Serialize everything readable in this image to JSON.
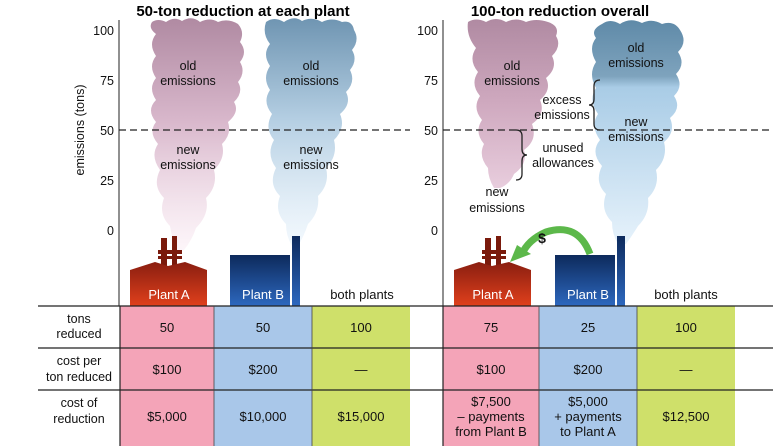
{
  "panels": [
    {
      "title": "50-ton reduction at each plant",
      "plume_labels": {
        "a_old": "old\nemissions",
        "a_new": "new\nemissions",
        "b_old": "old\nemissions",
        "b_new": "new\nemissions"
      },
      "plants": [
        "Plant A",
        "Plant B",
        "both plants"
      ],
      "rows": [
        [
          "50",
          "50",
          "100"
        ],
        [
          "$100",
          "$200",
          "—"
        ],
        [
          "$5,000",
          "$10,000",
          "$15,000"
        ]
      ]
    },
    {
      "title": "100-ton reduction overall",
      "plume_labels": {
        "a_old": "old\nemissions",
        "a_new": "new\nemissions",
        "b_old": "old\nemissions",
        "b_new": "new\nemissions"
      },
      "brackets": {
        "excess": "excess\nemissions",
        "unused": "unused\nallowances"
      },
      "transfer_symbol": "$",
      "plants": [
        "Plant A",
        "Plant B",
        "both plants"
      ],
      "rows": [
        [
          "75",
          "25",
          "100"
        ],
        [
          "$100",
          "$200",
          "—"
        ],
        [
          "$7,500\n– payments\nfrom Plant B",
          "$5,000\n+ payments\nto Plant A",
          "$12,500"
        ]
      ]
    }
  ],
  "y_axis": {
    "label": "emissions (tons)",
    "ticks": [
      "0",
      "25",
      "50",
      "75",
      "100"
    ],
    "range": [
      0,
      100
    ],
    "cap_line_value": 50
  },
  "row_labels": [
    "tons\nreduced",
    "cost per\nton reduced",
    "cost of\nreduction"
  ],
  "plume_levels": {
    "panel1_a": 25,
    "panel1_b": 25,
    "panel2_a_start": 25,
    "panel2_b_old_bottom": 75
  },
  "colors": {
    "plant_a": "#d23a1c",
    "plant_b": "#1c4f9c",
    "pink_cell": "#f4a4b8",
    "blue_cell": "#a9c7e9",
    "green_cell": "#cfe06a",
    "arrow": "#5cb84a",
    "plume_a": "#b68fa7",
    "plume_b": "#6f97b4"
  }
}
